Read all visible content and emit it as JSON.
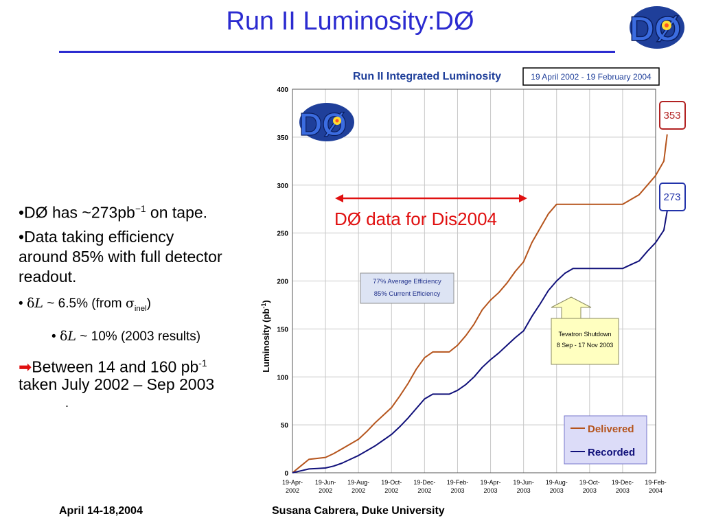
{
  "slide": {
    "title": "Run II Luminosity:DØ",
    "logo_text": "DØ",
    "footer_date": "April 14-18,2004",
    "footer_author": "Susana Cabrera, Duke University"
  },
  "bullets": {
    "b1_prefix": "•DØ has ~273pb",
    "b1_sup": "−1",
    "b1_suffix": " on tape.",
    "b2": "•Data taking efficiency around 85% with full detector readout.",
    "b3_bullet": "•",
    "b3_delta": "δ",
    "b3_L": "L",
    "b3_mid": " ~ 6.5% (from ",
    "b3_sigma": "σ",
    "b3_sub": "inel",
    "b3_end": ")",
    "b4_bullet": "•",
    "b4_delta": "δ",
    "b4_L": "L",
    "b4_text": " ~ 10% (2003 results)",
    "b5_arrow": "➡",
    "b5_text_a": "Between 14 and 160 pb",
    "b5_sup": "-1",
    "b5_text_b": "taken  July 2002 – Sep 2003",
    "b5_dot": "."
  },
  "chart_data": {
    "type": "line",
    "title": "Run II Integrated Luminosity",
    "date_range_label": "19 April 2002 - 19 February 2004",
    "ylabel": "Luminosity (pb",
    "ylabel_sup": "-1",
    "ylabel_end": ")",
    "ylim": [
      0,
      400
    ],
    "yticks": [
      0,
      50,
      100,
      150,
      200,
      250,
      300,
      350,
      400
    ],
    "x_tick_labels": [
      [
        "19-Apr-",
        "2002"
      ],
      [
        "19-Jun-",
        "2002"
      ],
      [
        "19-Aug-",
        "2002"
      ],
      [
        "19-Oct-",
        "2002"
      ],
      [
        "19-Dec-",
        "2002"
      ],
      [
        "19-Feb-",
        "2003"
      ],
      [
        "19-Apr-",
        "2003"
      ],
      [
        "19-Jun-",
        "2003"
      ],
      [
        "19-Aug-",
        "2003"
      ],
      [
        "19-Oct-",
        "2003"
      ],
      [
        "19-Dec-",
        "2003"
      ],
      [
        "19-Feb-",
        "2004"
      ]
    ],
    "grid": true,
    "series": [
      {
        "name": "Delivered",
        "color": "#b5541c",
        "end_value_label": "353",
        "x": [
          0,
          0.25,
          0.5,
          0.75,
          1,
          1.25,
          1.5,
          1.75,
          2,
          2.25,
          2.5,
          2.75,
          3,
          3.25,
          3.5,
          3.75,
          4,
          4.25,
          4.5,
          4.75,
          5,
          5.25,
          5.5,
          5.75,
          6,
          6.25,
          6.5,
          6.75,
          7,
          7.25,
          7.5,
          7.75,
          8,
          8.25,
          8.5,
          8.75,
          9,
          9.25,
          9.5,
          9.75,
          10,
          10.25,
          10.5,
          10.75,
          11,
          11.25,
          11.35
        ],
        "values": [
          0,
          7,
          14,
          15,
          16,
          20,
          25,
          30,
          35,
          43,
          52,
          60,
          68,
          80,
          93,
          108,
          120,
          126,
          126,
          126,
          133,
          143,
          155,
          170,
          180,
          188,
          198,
          210,
          220,
          240,
          255,
          270,
          280,
          280,
          280,
          280,
          280,
          280,
          280,
          280,
          280,
          285,
          290,
          300,
          310,
          325,
          353
        ]
      },
      {
        "name": "Recorded",
        "color": "#10107a",
        "end_value_label": "273",
        "x": [
          0,
          0.25,
          0.5,
          0.75,
          1,
          1.25,
          1.5,
          1.75,
          2,
          2.25,
          2.5,
          2.75,
          3,
          3.25,
          3.5,
          3.75,
          4,
          4.25,
          4.5,
          4.75,
          5,
          5.25,
          5.5,
          5.75,
          6,
          6.25,
          6.5,
          6.75,
          7,
          7.25,
          7.5,
          7.75,
          8,
          8.25,
          8.5,
          8.75,
          9,
          9.25,
          9.5,
          9.75,
          10,
          10.25,
          10.5,
          10.75,
          11,
          11.25,
          11.35
        ],
        "values": [
          0,
          2,
          4,
          4.5,
          5,
          7,
          10,
          14,
          18,
          23,
          28,
          34,
          40,
          48,
          57,
          67,
          77,
          82,
          82,
          82,
          86,
          92,
          100,
          110,
          118,
          125,
          133,
          141,
          148,
          163,
          176,
          190,
          200,
          208,
          213,
          213,
          213,
          213,
          213,
          213,
          213,
          217,
          221,
          231,
          240,
          253,
          273
        ]
      }
    ],
    "efficiency_box": [
      "77% Average Efficiency",
      "85% Current Efficiency"
    ],
    "shutdown_box": [
      "Tevatron Shutdown",
      "8 Sep - 17 Nov 2003"
    ],
    "dis_label": "DØ data for Dis2004",
    "legend_placement": "bottom-right"
  },
  "colors": {
    "title_blue": "#2b2bd0",
    "delivered": "#b5541c",
    "recorded": "#10107a",
    "red_annotation": "#e01010",
    "legend_bg": "#dcdcf8"
  }
}
